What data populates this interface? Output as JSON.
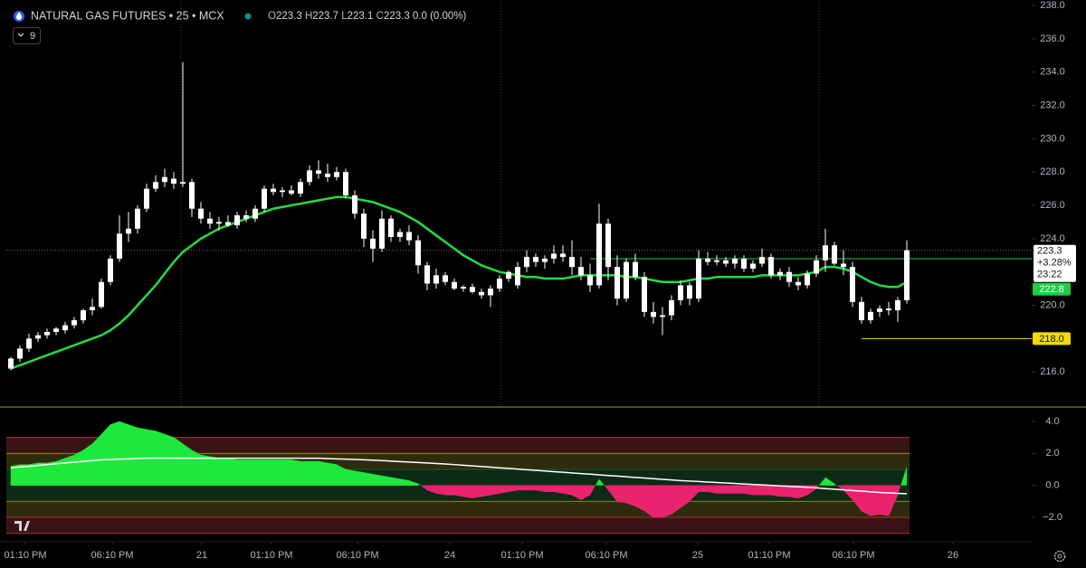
{
  "chart_data": [
    {
      "type": "candlestick",
      "title": "NATURAL GAS FUTURES • 25 • MCX",
      "ohlc": [
        {
          "key": "O",
          "value": 223.3
        },
        {
          "key": "H",
          "value": 223.7
        },
        {
          "key": "L",
          "value": 223.1
        },
        {
          "key": "C",
          "value": 223.3
        }
      ],
      "change": "0.0 (0.00%)",
      "indicator_count": 9,
      "color": "#ffffff",
      "xlim": [
        -0.5,
        112.8
      ],
      "ylim": [
        214.0,
        238.33
      ],
      "yticks": [
        {
          "value": 216,
          "label": "216.0"
        },
        {
          "value": 218,
          "label": "218.0"
        },
        {
          "value": 220,
          "label": "220.0"
        },
        {
          "value": 222,
          "label": "222.0"
        },
        {
          "value": 224,
          "label": "224.0"
        },
        {
          "value": 226,
          "label": "226.0"
        },
        {
          "value": 228,
          "label": "228.0"
        },
        {
          "value": 230,
          "label": "230.0"
        },
        {
          "value": 232,
          "label": "232.0"
        },
        {
          "value": 234,
          "label": "234.0"
        },
        {
          "value": 236,
          "label": "236.0"
        },
        {
          "value": 238,
          "label": "238.0"
        }
      ],
      "xticks": [
        {
          "value": 1.6,
          "label": "01:10 PM"
        },
        {
          "value": 11.2,
          "label": "06:10 PM"
        },
        {
          "value": 21.1,
          "label": "21"
        },
        {
          "value": 28.8,
          "label": "01:10 PM"
        },
        {
          "value": 38.3,
          "label": "06:10 PM"
        },
        {
          "value": 48.5,
          "label": "24"
        },
        {
          "value": 56.5,
          "label": "01:10 PM"
        },
        {
          "value": 65.8,
          "label": "06:10 PM"
        },
        {
          "value": 75.9,
          "label": "25"
        },
        {
          "value": 83.8,
          "label": "01:10 PM"
        },
        {
          "value": 93.1,
          "label": "06:10 PM"
        },
        {
          "value": 104.1,
          "label": "26"
        }
      ],
      "candles": [
        [
          216.2,
          216.9,
          216.1,
          216.8
        ],
        [
          216.8,
          217.6,
          216.6,
          217.4
        ],
        [
          217.4,
          218.3,
          217.2,
          218.0
        ],
        [
          218.0,
          218.4,
          217.8,
          218.2
        ],
        [
          218.2,
          218.6,
          218.0,
          218.4
        ],
        [
          218.4,
          218.7,
          218.2,
          218.6
        ],
        [
          218.5,
          219.0,
          218.3,
          218.8
        ],
        [
          218.8,
          219.3,
          218.6,
          219.1
        ],
        [
          219.1,
          219.8,
          218.9,
          219.7
        ],
        [
          219.7,
          220.4,
          219.4,
          219.9
        ],
        [
          219.9,
          221.6,
          219.8,
          221.4
        ],
        [
          221.4,
          223.0,
          221.2,
          222.8
        ],
        [
          222.8,
          225.4,
          222.6,
          224.3
        ],
        [
          224.3,
          225.6,
          223.8,
          224.6
        ],
        [
          224.6,
          226.0,
          224.3,
          225.8
        ],
        [
          225.8,
          227.3,
          225.6,
          227.0
        ],
        [
          227.0,
          227.8,
          226.8,
          227.4
        ],
        [
          227.4,
          228.2,
          227.1,
          227.7
        ],
        [
          227.6,
          228.0,
          227.0,
          227.3
        ],
        [
          227.3,
          234.6,
          227.1,
          227.4
        ],
        [
          227.4,
          227.6,
          225.3,
          225.8
        ],
        [
          225.8,
          226.2,
          224.9,
          225.2
        ],
        [
          225.2,
          225.6,
          224.6,
          224.9
        ],
        [
          224.9,
          225.3,
          224.5,
          225.0
        ],
        [
          225.0,
          225.4,
          224.7,
          224.8
        ],
        [
          224.8,
          225.6,
          224.6,
          225.4
        ],
        [
          225.4,
          225.7,
          225.0,
          225.2
        ],
        [
          225.2,
          226.0,
          225.0,
          225.8
        ],
        [
          225.8,
          227.2,
          225.6,
          227.0
        ],
        [
          227.0,
          227.3,
          226.6,
          226.8
        ],
        [
          226.8,
          227.1,
          226.5,
          226.9
        ],
        [
          226.9,
          227.2,
          226.6,
          226.7
        ],
        [
          226.7,
          227.6,
          226.5,
          227.4
        ],
        [
          227.4,
          228.4,
          227.2,
          228.1
        ],
        [
          228.1,
          228.7,
          227.6,
          227.9
        ],
        [
          227.9,
          228.5,
          227.4,
          227.7
        ],
        [
          227.7,
          228.3,
          227.5,
          228.0
        ],
        [
          228.0,
          228.2,
          226.4,
          226.6
        ],
        [
          226.6,
          226.9,
          225.2,
          225.5
        ],
        [
          225.5,
          225.8,
          223.5,
          224.0
        ],
        [
          224.0,
          224.5,
          222.6,
          223.4
        ],
        [
          223.4,
          225.7,
          223.2,
          225.2
        ],
        [
          225.2,
          225.4,
          223.8,
          224.1
        ],
        [
          224.1,
          224.6,
          223.8,
          224.4
        ],
        [
          224.4,
          224.8,
          223.6,
          223.9
        ],
        [
          223.9,
          224.2,
          221.9,
          222.4
        ],
        [
          222.4,
          222.6,
          220.9,
          221.3
        ],
        [
          221.3,
          222.2,
          221.0,
          221.8
        ],
        [
          221.8,
          222.0,
          221.2,
          221.4
        ],
        [
          221.4,
          221.6,
          220.9,
          221.0
        ],
        [
          221.0,
          221.2,
          220.8,
          221.1
        ],
        [
          221.1,
          221.3,
          220.7,
          220.8
        ],
        [
          220.8,
          221.0,
          220.4,
          220.6
        ],
        [
          220.6,
          221.2,
          219.9,
          221.0
        ],
        [
          221.0,
          221.8,
          220.8,
          221.6
        ],
        [
          221.6,
          222.1,
          221.4,
          222.0
        ],
        [
          221.2,
          222.6,
          221.0,
          222.3
        ],
        [
          222.3,
          223.3,
          222.0,
          222.9
        ],
        [
          222.9,
          223.1,
          222.3,
          222.6
        ],
        [
          222.6,
          223.0,
          222.2,
          222.8
        ],
        [
          222.8,
          223.6,
          222.5,
          223.1
        ],
        [
          223.1,
          223.6,
          222.6,
          222.9
        ],
        [
          222.9,
          223.9,
          221.8,
          222.3
        ],
        [
          222.3,
          222.9,
          221.5,
          221.8
        ],
        [
          221.8,
          222.5,
          220.8,
          221.2
        ],
        [
          221.2,
          226.1,
          221.0,
          224.9
        ],
        [
          224.9,
          225.2,
          221.5,
          222.3
        ],
        [
          222.3,
          223.0,
          220.0,
          220.4
        ],
        [
          220.4,
          222.8,
          220.2,
          222.6
        ],
        [
          222.6,
          223.1,
          221.5,
          221.7
        ],
        [
          221.7,
          222.0,
          219.3,
          219.6
        ],
        [
          219.6,
          220.2,
          218.9,
          219.3
        ],
        [
          219.3,
          219.9,
          218.2,
          219.4
        ],
        [
          219.4,
          220.6,
          219.1,
          220.3
        ],
        [
          220.3,
          221.5,
          220.0,
          221.2
        ],
        [
          221.2,
          221.4,
          220.0,
          220.4
        ],
        [
          220.4,
          223.3,
          220.2,
          222.8
        ],
        [
          222.8,
          223.2,
          222.4,
          222.6
        ],
        [
          222.6,
          223.0,
          222.4,
          222.7
        ],
        [
          222.7,
          222.9,
          222.3,
          222.5
        ],
        [
          222.5,
          223.0,
          222.2,
          222.8
        ],
        [
          222.8,
          223.0,
          222.0,
          222.2
        ],
        [
          222.2,
          222.7,
          222.0,
          222.5
        ],
        [
          222.5,
          223.4,
          222.3,
          222.9
        ],
        [
          222.9,
          223.1,
          221.6,
          221.8
        ],
        [
          221.8,
          222.2,
          221.5,
          222.0
        ],
        [
          222.0,
          222.3,
          221.1,
          221.4
        ],
        [
          221.4,
          221.7,
          220.9,
          221.2
        ],
        [
          221.2,
          222.1,
          221.0,
          221.9
        ],
        [
          221.9,
          223.0,
          221.7,
          222.7
        ],
        [
          222.7,
          224.6,
          222.0,
          223.6
        ],
        [
          223.6,
          223.8,
          222.4,
          222.5
        ],
        [
          222.5,
          223.3,
          221.8,
          222.3
        ],
        [
          222.3,
          222.6,
          219.9,
          220.2
        ],
        [
          220.2,
          220.5,
          218.9,
          219.1
        ],
        [
          219.1,
          219.8,
          218.9,
          219.6
        ],
        [
          219.6,
          220.0,
          219.3,
          219.8
        ],
        [
          219.8,
          220.2,
          219.4,
          219.7
        ],
        [
          219.7,
          220.5,
          219.0,
          220.3
        ],
        [
          220.3,
          223.9,
          220.1,
          223.3
        ]
      ],
      "ema": {
        "color": "#22dd44",
        "values": [
          216.2,
          216.4,
          216.6,
          216.8,
          217.0,
          217.2,
          217.4,
          217.6,
          217.8,
          218.0,
          218.2,
          218.5,
          218.9,
          219.4,
          220.0,
          220.6,
          221.2,
          221.9,
          222.6,
          223.2,
          223.6,
          224.0,
          224.3,
          224.6,
          224.8,
          225.0,
          225.2,
          225.4,
          225.6,
          225.8,
          225.9,
          226.0,
          226.1,
          226.2,
          226.3,
          226.4,
          226.5,
          226.5,
          226.4,
          226.3,
          226.2,
          226.0,
          225.8,
          225.6,
          225.3,
          225.0,
          224.6,
          224.2,
          223.8,
          223.4,
          223.0,
          222.7,
          222.4,
          222.2,
          222.0,
          221.9,
          221.8,
          221.7,
          221.7,
          221.6,
          221.6,
          221.6,
          221.7,
          221.8,
          221.8,
          221.8,
          221.8,
          221.8,
          221.7,
          221.7,
          221.6,
          221.5,
          221.4,
          221.4,
          221.4,
          221.5,
          221.6,
          221.6,
          221.7,
          221.7,
          221.7,
          221.7,
          221.7,
          221.8,
          221.8,
          221.8,
          221.8,
          221.8,
          221.9,
          222.0,
          222.3,
          222.3,
          222.2,
          222.0,
          221.7,
          221.4,
          221.2,
          221.1,
          221.1,
          221.4
        ]
      },
      "levels": [
        {
          "value": 222.8,
          "x0": 64,
          "color": "#22cc44"
        },
        {
          "value": 218,
          "label": "218.0",
          "x0": 94,
          "color": "#f5d90a"
        }
      ],
      "last": {
        "value": 223.3,
        "change": {
          "value": 3.28,
          "label": "+3.28%"
        },
        "countdown": "23:22"
      }
    },
    {
      "type": "oscillator",
      "xlim": [
        -0.5,
        112.8
      ],
      "ylim": [
        -3.47,
        4.79
      ],
      "yticks": [
        {
          "value": 4,
          "label": "4.0"
        },
        {
          "value": 2,
          "label": "2.0"
        },
        {
          "value": 0,
          "label": "0.0"
        },
        {
          "value": -2,
          "label": "−2.0"
        }
      ],
      "bands": [
        {
          "from": 2,
          "to": 3,
          "color": "#3a1414",
          "edge": "#a83030"
        },
        {
          "from": 1,
          "to": 2,
          "color": "#2e2c0c",
          "edge": "#8c7d1e"
        },
        {
          "from": -1,
          "to": 1,
          "color": "#0d2a16",
          "edge": "#1d5a2c"
        },
        {
          "from": -2,
          "to": -1,
          "color": "#2e2c0c",
          "edge": "#8c7d1e"
        },
        {
          "from": -3,
          "to": -2,
          "color": "#3a1414",
          "edge": "#a83030"
        }
      ],
      "positive_color": "#1fe83c",
      "negative_color": "#e8246e",
      "values": [
        1.2,
        1.3,
        1.3,
        1.4,
        1.4,
        1.5,
        1.7,
        1.9,
        2.2,
        2.6,
        3.2,
        3.8,
        4.0,
        3.8,
        3.6,
        3.5,
        3.4,
        3.2,
        3.0,
        2.6,
        2.2,
        1.9,
        1.8,
        1.7,
        1.7,
        1.6,
        1.6,
        1.6,
        1.6,
        1.6,
        1.6,
        1.6,
        1.5,
        1.5,
        1.5,
        1.4,
        1.3,
        1.0,
        0.9,
        0.8,
        0.7,
        0.6,
        0.5,
        0.4,
        0.3,
        0.1,
        -0.3,
        -0.5,
        -0.6,
        -0.6,
        -0.7,
        -0.8,
        -0.7,
        -0.6,
        -0.5,
        -0.4,
        -0.3,
        -0.3,
        -0.3,
        -0.4,
        -0.4,
        -0.5,
        -0.6,
        -0.9,
        -0.6,
        0.4,
        -0.3,
        -1.0,
        -1.1,
        -1.3,
        -1.6,
        -2.0,
        -2.0,
        -1.8,
        -1.4,
        -1.0,
        -0.4,
        -0.4,
        -0.5,
        -0.5,
        -0.5,
        -0.5,
        -0.6,
        -0.6,
        -0.6,
        -0.7,
        -0.7,
        -0.8,
        -0.6,
        -0.2,
        0.5,
        0.1,
        -0.3,
        -0.9,
        -1.6,
        -1.9,
        -1.8,
        -1.9,
        -0.6,
        1.2
      ],
      "signal": {
        "color": "#ffffff",
        "values": [
          1.1,
          1.15,
          1.2,
          1.25,
          1.3,
          1.35,
          1.4,
          1.45,
          1.5,
          1.55,
          1.6,
          1.62,
          1.64,
          1.66,
          1.68,
          1.7,
          1.7,
          1.7,
          1.7,
          1.7,
          1.7,
          1.7,
          1.7,
          1.7,
          1.7,
          1.7,
          1.7,
          1.7,
          1.7,
          1.7,
          1.7,
          1.7,
          1.7,
          1.7,
          1.7,
          1.68,
          1.66,
          1.64,
          1.62,
          1.6,
          1.58,
          1.55,
          1.52,
          1.49,
          1.46,
          1.43,
          1.4,
          1.37,
          1.34,
          1.3,
          1.26,
          1.22,
          1.18,
          1.14,
          1.1,
          1.06,
          1.02,
          0.98,
          0.94,
          0.9,
          0.86,
          0.82,
          0.78,
          0.74,
          0.7,
          0.66,
          0.62,
          0.58,
          0.54,
          0.5,
          0.46,
          0.42,
          0.38,
          0.34,
          0.3,
          0.27,
          0.24,
          0.21,
          0.18,
          0.15,
          0.12,
          0.09,
          0.06,
          0.03,
          0.0,
          -0.03,
          -0.06,
          -0.09,
          -0.12,
          -0.15,
          -0.2,
          -0.24,
          -0.28,
          -0.32,
          -0.36,
          -0.4,
          -0.44,
          -0.47,
          -0.5,
          -0.52
        ]
      }
    }
  ]
}
